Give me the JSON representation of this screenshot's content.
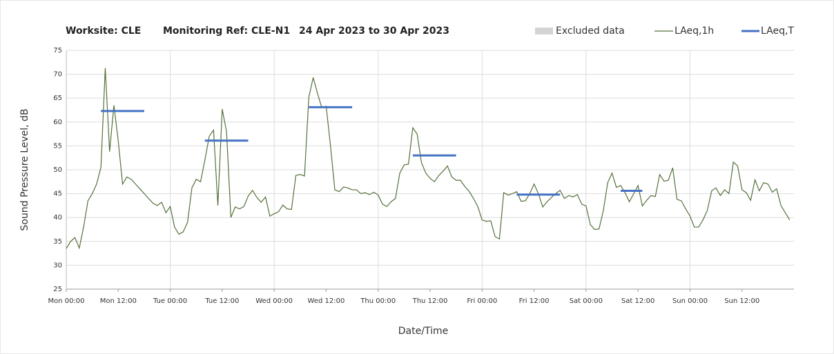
{
  "chart_data": {
    "type": "line",
    "title_parts": [
      "Worksite: CLE",
      "Monitoring Ref: CLE-N1",
      "24 Apr 2023 to 30 Apr 2023"
    ],
    "x_label": "Date/Time",
    "y_label": "Sound Pressure Level, dB",
    "xlim": [
      0,
      168
    ],
    "xticks": [
      {
        "value": 0,
        "label": "Mon 00:00"
      },
      {
        "value": 12,
        "label": "Mon 12:00"
      },
      {
        "value": 24,
        "label": "Tue 00:00"
      },
      {
        "value": 36,
        "label": "Tue 12:00"
      },
      {
        "value": 48,
        "label": "Wed 00:00"
      },
      {
        "value": 60,
        "label": "Wed 12:00"
      },
      {
        "value": 72,
        "label": "Thu 00:00"
      },
      {
        "value": 84,
        "label": "Thu 12:00"
      },
      {
        "value": 96,
        "label": "Fri 00:00"
      },
      {
        "value": 108,
        "label": "Fri 12:00"
      },
      {
        "value": 120,
        "label": "Sat 00:00"
      },
      {
        "value": 132,
        "label": "Sat 12:00"
      },
      {
        "value": 144,
        "label": "Sun 00:00"
      },
      {
        "value": 156,
        "label": "Sun 12:00"
      }
    ],
    "ylim": [
      25,
      75
    ],
    "yticks": [
      25,
      30,
      35,
      40,
      45,
      50,
      55,
      60,
      65,
      70,
      75
    ],
    "grid": true,
    "excluded": {
      "name": "Excluded data",
      "color": "#d4d4d4"
    },
    "x": [
      0,
      1,
      2,
      3,
      4,
      5,
      6,
      7,
      8,
      9,
      10,
      11,
      12,
      13,
      14,
      15,
      16,
      17,
      18,
      19,
      20,
      21,
      22,
      23,
      24,
      25,
      26,
      27,
      28,
      29,
      30,
      31,
      32,
      33,
      34,
      35,
      36,
      37,
      38,
      39,
      40,
      41,
      42,
      43,
      44,
      45,
      46,
      47,
      48,
      49,
      50,
      51,
      52,
      53,
      54,
      55,
      56,
      57,
      58,
      59,
      60,
      61,
      62,
      63,
      64,
      65,
      66,
      67,
      68,
      69,
      70,
      71,
      72,
      73,
      74,
      75,
      76,
      77,
      78,
      79,
      80,
      81,
      82,
      83,
      84,
      85,
      86,
      87,
      88,
      89,
      90,
      91,
      92,
      93,
      94,
      95,
      96,
      97,
      98,
      99,
      100,
      101,
      102,
      103,
      104,
      105,
      106,
      107,
      108,
      109,
      110,
      111,
      112,
      113,
      114,
      115,
      116,
      117,
      118,
      119,
      120,
      121,
      122,
      123,
      124,
      125,
      126,
      127,
      128,
      129,
      130,
      131,
      132,
      133,
      134,
      135,
      136,
      137,
      138,
      139,
      140,
      141,
      142,
      143,
      144,
      145,
      146,
      147,
      148,
      149,
      150,
      151,
      152,
      153,
      154,
      155,
      156,
      157,
      158,
      159,
      160,
      161,
      162,
      163,
      164,
      165,
      166,
      167
    ],
    "series": [
      {
        "name": "LAeq,1h",
        "color": "#53713a",
        "values": [
          33.5,
          35,
          35.8,
          33.6,
          38,
          43.5,
          45,
          47,
          50.5,
          71.3,
          53.8,
          63.5,
          56,
          47,
          48.5,
          48,
          47,
          46,
          45,
          44,
          43,
          42.5,
          43.2,
          41,
          42.3,
          38,
          36.5,
          37,
          39,
          46.2,
          48,
          47.5,
          52,
          57,
          58.3,
          42.5,
          62.7,
          58,
          40,
          42.2,
          41.8,
          42.3,
          44.5,
          45.7,
          44.2,
          43.2,
          44.3,
          40.3,
          40.8,
          41.2,
          42.6,
          41.8,
          41.7,
          48.8,
          49,
          48.7,
          65.2,
          69.3,
          66,
          63,
          63.3,
          55,
          45.8,
          45.4,
          46.4,
          46.2,
          45.8,
          45.8,
          45,
          45.2,
          44.8,
          45.3,
          44.7,
          42.8,
          42.3,
          43.3,
          44,
          49.3,
          51,
          51.2,
          58.8,
          57.5,
          51.5,
          49.3,
          48.2,
          47.5,
          48.8,
          49.7,
          50.8,
          48.5,
          47.8,
          47.8,
          46.5,
          45.5,
          44,
          42.3,
          39.5,
          39.2,
          39.3,
          36,
          35.5,
          45.2,
          44.7,
          45,
          45.4,
          43.4,
          43.5,
          45,
          47,
          45,
          42.2,
          43.3,
          44.2,
          45,
          45.7,
          44,
          44.6,
          44.3,
          44.8,
          42.8,
          42.4,
          38.5,
          37.5,
          37.6,
          41.5,
          47.3,
          49.3,
          46.3,
          46.7,
          45.2,
          43.3,
          45,
          46.7,
          42.4,
          43.6,
          44.6,
          44.4,
          49,
          47.6,
          47.8,
          50.4,
          43.8,
          43.5,
          41.8,
          40.3,
          38,
          38,
          39.5,
          41.5,
          45.6,
          46.2,
          44.6,
          45.8,
          45,
          51.6,
          50.8,
          45.8,
          45.2,
          43.6,
          47.9,
          45.6,
          47.3,
          47,
          45.3,
          46,
          42.5,
          41,
          39.5
        ]
      }
    ],
    "period_series": {
      "name": "LAeq,T",
      "color": "#4472c4",
      "segments": [
        {
          "x": [
            8,
            18
          ],
          "value": 62.3
        },
        {
          "x": [
            32,
            42
          ],
          "value": 56.1
        },
        {
          "x": [
            56,
            66
          ],
          "value": 63.1
        },
        {
          "x": [
            80,
            90
          ],
          "value": 53
        },
        {
          "x": [
            104,
            114
          ],
          "value": 44.8
        },
        {
          "x": [
            128,
            133
          ],
          "value": 45.6
        }
      ]
    }
  }
}
